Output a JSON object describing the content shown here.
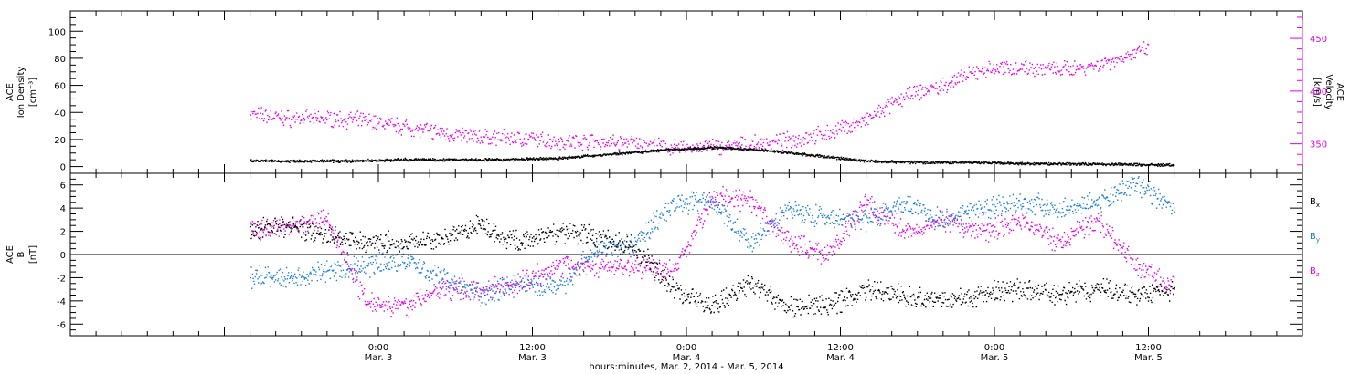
{
  "colors": {
    "density": "#000000",
    "velocity": "#e600e6",
    "bx": "#000000",
    "by": "#1a7fd6",
    "bz": "#e600e6"
  },
  "chart_data": [
    {
      "type": "scatter",
      "ylabel_left": [
        "ACE",
        "Ion Density",
        "[cm⁻³]"
      ],
      "ylabel_right": [
        "ACE",
        "Velocity",
        "[km/s]"
      ],
      "ylim_left": [
        -5,
        115
      ],
      "ylim_right": [
        322,
        476
      ],
      "yticks_left": [
        "0",
        "20",
        "40",
        "60",
        "80",
        "100"
      ],
      "yticks_right": [
        "350",
        "400",
        "450"
      ],
      "series": [
        {
          "axis": "left",
          "x": [
            0,
            4,
            8,
            12,
            16,
            20,
            24,
            28,
            32,
            36,
            40,
            44,
            48,
            52,
            56,
            60,
            64,
            72
          ],
          "y": [
            4,
            4,
            4,
            5,
            5,
            5,
            6,
            9,
            12,
            14,
            12,
            8,
            4,
            3,
            3,
            2,
            2,
            1
          ]
        },
        {
          "axis": "right",
          "x": [
            0,
            3,
            6,
            9,
            12,
            15,
            18,
            21,
            24,
            27,
            30,
            33,
            36,
            39,
            42,
            45,
            48,
            51,
            54,
            57,
            60,
            63,
            66,
            68,
            70
          ],
          "y": [
            378,
            374,
            374,
            372,
            366,
            360,
            356,
            355,
            352,
            352,
            350,
            346,
            347,
            349,
            353,
            360,
            372,
            395,
            405,
            420,
            423,
            420,
            425,
            432,
            440
          ]
        }
      ]
    },
    {
      "type": "scatter",
      "ylabel_left": [
        "ACE",
        "B",
        "[nT]"
      ],
      "ylim": [
        -7,
        7
      ],
      "yticks": [
        "-6",
        "-4",
        "-2",
        "0",
        "2",
        "4",
        "6"
      ],
      "series": [
        {
          "name": "B<sub>x</sub>",
          "x": [
            0,
            3,
            6,
            9,
            12,
            15,
            18,
            21,
            24,
            27,
            30,
            33,
            36,
            39,
            42,
            45,
            48,
            51,
            54,
            57,
            60,
            63,
            66,
            69,
            72
          ],
          "y": [
            2,
            2.5,
            1.5,
            1,
            1,
            1.5,
            2.5,
            1,
            2,
            1.5,
            0.5,
            -3,
            -4.5,
            -2.5,
            -4.5,
            -4.5,
            -3,
            -3.5,
            -4,
            -3.5,
            -3,
            -3.5,
            -3,
            -3.5,
            -3
          ]
        },
        {
          "name": "B<sub>y</sub>",
          "x": [
            0,
            3,
            6,
            9,
            12,
            15,
            18,
            21,
            24,
            27,
            30,
            33,
            36,
            39,
            42,
            45,
            48,
            51,
            54,
            57,
            60,
            63,
            66,
            69,
            72
          ],
          "y": [
            -2,
            -2,
            -1.5,
            -1,
            -0.5,
            -2,
            -3.5,
            -2.5,
            -3,
            0.5,
            1,
            4.5,
            4.5,
            1,
            4,
            3,
            3,
            4.5,
            3,
            4,
            4.5,
            4,
            4.5,
            6,
            4
          ]
        },
        {
          "name": "B<sub>z</sub>",
          "x": [
            0,
            3,
            6,
            9,
            12,
            15,
            18,
            21,
            24,
            27,
            30,
            33,
            36,
            39,
            42,
            45,
            48,
            51,
            54,
            57,
            60,
            63,
            66,
            69,
            72
          ],
          "y": [
            2,
            2.5,
            3,
            -4,
            -4.5,
            -3,
            -3,
            -2.5,
            -1,
            -1,
            -1,
            -1.5,
            5,
            4.5,
            1,
            0,
            4.5,
            2,
            3,
            2,
            3,
            1,
            3,
            -1,
            -3
          ]
        }
      ]
    }
  ],
  "xaxis": {
    "ticks": [
      {
        "t": 10,
        "time": "0:00",
        "date": "Mar. 3"
      },
      {
        "t": 22,
        "time": "12:00",
        "date": "Mar. 3"
      },
      {
        "t": 34,
        "time": "0:00",
        "date": "Mar. 4"
      },
      {
        "t": 46,
        "time": "12:00",
        "date": "Mar. 4"
      },
      {
        "t": 58,
        "time": "0:00",
        "date": "Mar. 5"
      },
      {
        "t": 70,
        "time": "12:00",
        "date": "Mar. 5"
      }
    ],
    "label": "hours:minutes, Mar.  2, 2014 - Mar.  5, 2014"
  }
}
